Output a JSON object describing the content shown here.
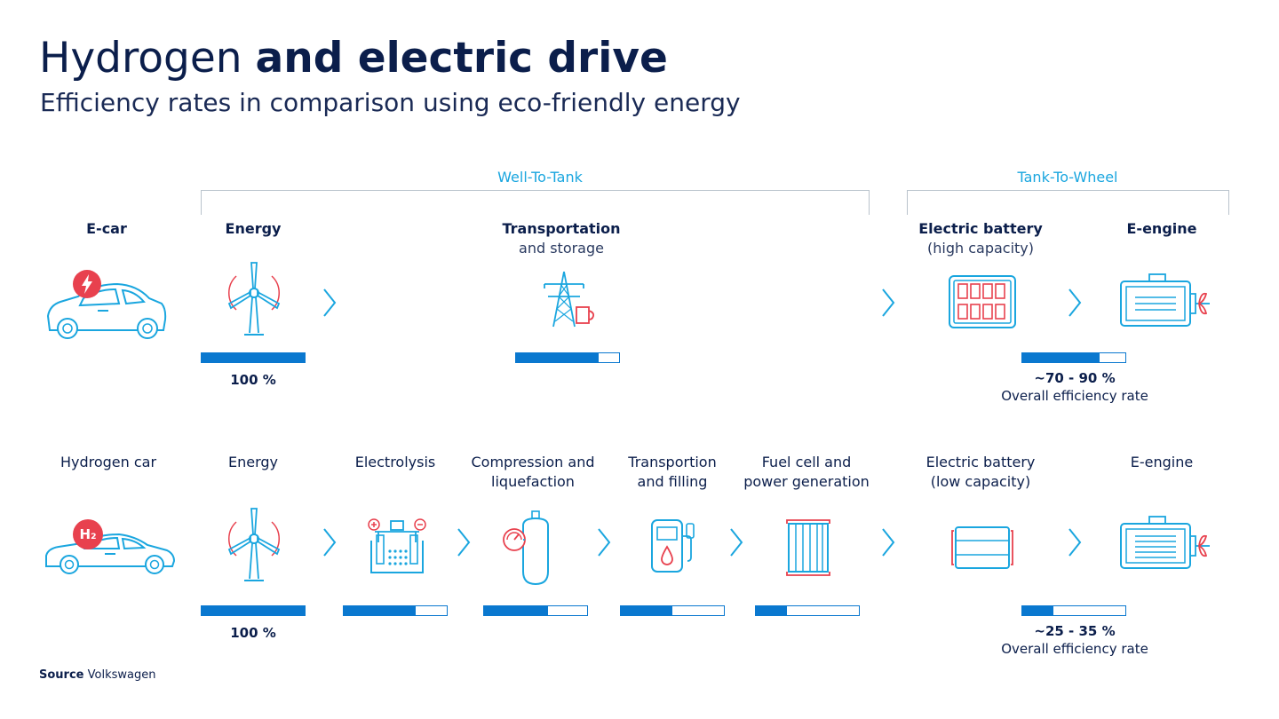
{
  "title": {
    "light": "Hydrogen ",
    "bold": "and electric drive"
  },
  "subtitle": "Efficiency rates in comparison using eco-friendly energy",
  "phases": {
    "well_to_tank": "Well-To-Tank",
    "tank_to_wheel": "Tank-To-Wheel"
  },
  "ecar": {
    "label": "E-car",
    "energy": {
      "label": "Energy",
      "fill": 1.0,
      "value": "100 %"
    },
    "transport": {
      "label": "Transportation",
      "sub": "and storage",
      "fill": 0.8
    },
    "battery": {
      "label": "Electric battery",
      "sub": "(high capacity)"
    },
    "engine": {
      "label": "E-engine"
    },
    "overall": {
      "fill": 0.75,
      "value": "~70 - 90 %",
      "note": "Overall efficiency rate"
    }
  },
  "hcar": {
    "label": "Hydrogen car",
    "badge": "H₂",
    "energy": {
      "label": "Energy",
      "fill": 1.0,
      "value": "100 %"
    },
    "electrolysis": {
      "label": "Electrolysis",
      "fill": 0.7
    },
    "compression": {
      "label1": "Compression and",
      "label2": "liquefaction",
      "fill": 0.62
    },
    "transport": {
      "label1": "Transportion",
      "label2": "and filling",
      "fill": 0.5
    },
    "fuelcell": {
      "label1": "Fuel cell and",
      "label2": "power generation",
      "fill": 0.3
    },
    "battery": {
      "label1": "Electric battery",
      "label2": "(low capacity)"
    },
    "engine": {
      "label": "E-engine"
    },
    "overall": {
      "fill": 0.3,
      "value": "~25 - 35 %",
      "note": "Overall efficiency rate"
    }
  },
  "source": {
    "label": "Source",
    "value": "Volkswagen"
  },
  "colors": {
    "navy": "#0b1e4b",
    "cyan": "#1aa6df",
    "blue": "#0a78cf",
    "red": "#e8414e",
    "bracket": "#b9c3cc"
  }
}
